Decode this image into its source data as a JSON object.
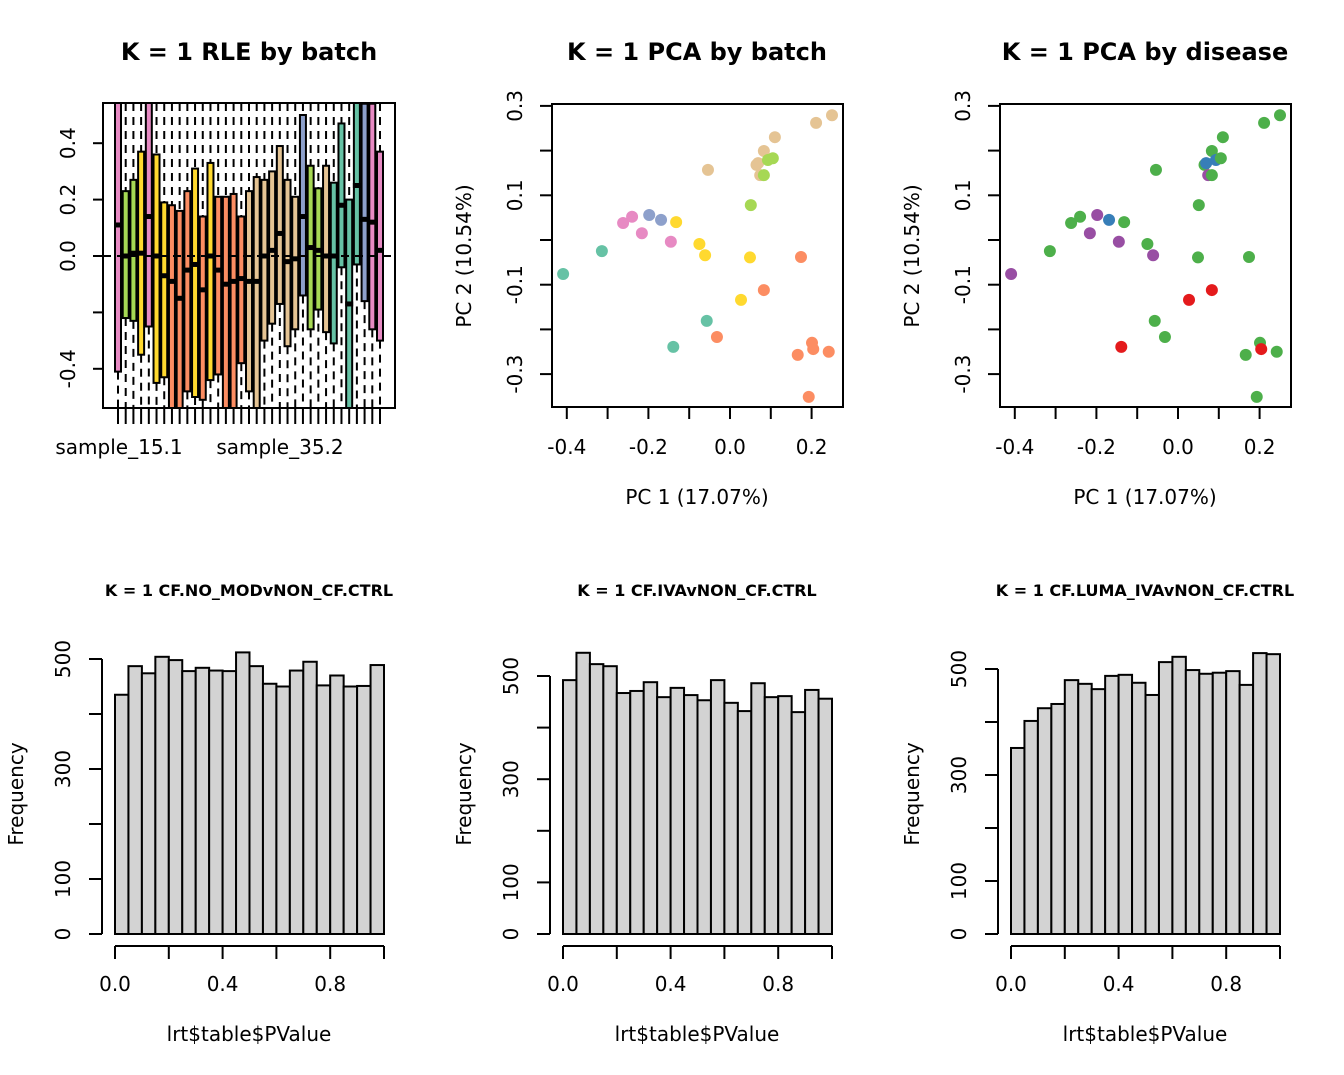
{
  "chart_data": [
    {
      "type": "boxplot",
      "title": "K = 1 RLE by batch",
      "xlabel": "",
      "ylabel": "",
      "ylim": [
        -0.54,
        0.54
      ],
      "yticks": [
        -0.4,
        -0.2,
        0.0,
        0.2,
        0.4
      ],
      "ytick_labels": [
        "-0.4",
        "",
        "0.0",
        "0.2",
        "0.4"
      ],
      "xtick_labels": [
        {
          "index": 4,
          "label": "sample_15.1"
        },
        {
          "index": 17,
          "label": "sample_35.2"
        }
      ],
      "reference_line": 0.0,
      "batch_colors": {
        "pink": "#E78AC3",
        "green": "#A6D854",
        "yellow": "#FFD92F",
        "salmon": "#FC8D62",
        "tan": "#E5C494",
        "blue": "#8DA0CB",
        "teal": "#66C2A5"
      },
      "boxes": [
        {
          "batch": "pink",
          "low": -0.6,
          "q1": -0.41,
          "median": 0.11,
          "q3": 0.6,
          "high": 0.7
        },
        {
          "batch": "green",
          "low": -0.6,
          "q1": -0.22,
          "median": 0.0,
          "q3": 0.23,
          "high": 0.6
        },
        {
          "batch": "green",
          "low": -0.6,
          "q1": -0.23,
          "median": 0.01,
          "q3": 0.27,
          "high": 0.6
        },
        {
          "batch": "yellow",
          "low": -0.6,
          "q1": -0.35,
          "median": 0.01,
          "q3": 0.37,
          "high": 0.6
        },
        {
          "batch": "pink",
          "low": -0.6,
          "q1": -0.25,
          "median": 0.14,
          "q3": 0.6,
          "high": 0.7
        },
        {
          "batch": "yellow",
          "low": -0.6,
          "q1": -0.45,
          "median": 0.0,
          "q3": 0.36,
          "high": 0.6
        },
        {
          "batch": "yellow",
          "low": -0.6,
          "q1": -0.43,
          "median": -0.07,
          "q3": 0.19,
          "high": 0.6
        },
        {
          "batch": "salmon",
          "low": -0.7,
          "q1": -0.6,
          "median": -0.09,
          "q3": 0.18,
          "high": 0.6
        },
        {
          "batch": "salmon",
          "low": -0.7,
          "q1": -0.6,
          "median": -0.15,
          "q3": 0.16,
          "high": 0.6
        },
        {
          "batch": "salmon",
          "low": -0.6,
          "q1": -0.48,
          "median": -0.05,
          "q3": 0.23,
          "high": 0.6
        },
        {
          "batch": "yellow",
          "low": -0.6,
          "q1": -0.5,
          "median": -0.03,
          "q3": 0.31,
          "high": 0.6
        },
        {
          "batch": "salmon",
          "low": -0.6,
          "q1": -0.51,
          "median": -0.12,
          "q3": 0.14,
          "high": 0.6
        },
        {
          "batch": "yellow",
          "low": -0.6,
          "q1": -0.44,
          "median": 0.0,
          "q3": 0.33,
          "high": 0.6
        },
        {
          "batch": "salmon",
          "low": -0.6,
          "q1": -0.42,
          "median": -0.05,
          "q3": 0.21,
          "high": 0.6
        },
        {
          "batch": "salmon",
          "low": -0.7,
          "q1": -0.6,
          "median": -0.1,
          "q3": 0.21,
          "high": 0.6
        },
        {
          "batch": "salmon",
          "low": -0.7,
          "q1": -0.6,
          "median": -0.09,
          "q3": 0.22,
          "high": 0.6
        },
        {
          "batch": "salmon",
          "low": -0.6,
          "q1": -0.38,
          "median": -0.08,
          "q3": 0.14,
          "high": 0.6
        },
        {
          "batch": "tan",
          "low": -0.6,
          "q1": -0.48,
          "median": -0.09,
          "q3": 0.23,
          "high": 0.6
        },
        {
          "batch": "tan",
          "low": -0.7,
          "q1": -0.6,
          "median": -0.09,
          "q3": 0.28,
          "high": 0.6
        },
        {
          "batch": "tan",
          "low": -0.6,
          "q1": -0.3,
          "median": 0.0,
          "q3": 0.27,
          "high": 0.6
        },
        {
          "batch": "tan",
          "low": -0.6,
          "q1": -0.24,
          "median": 0.02,
          "q3": 0.3,
          "high": 0.6
        },
        {
          "batch": "tan",
          "low": -0.6,
          "q1": -0.17,
          "median": 0.08,
          "q3": 0.39,
          "high": 0.6
        },
        {
          "batch": "tan",
          "low": -0.6,
          "q1": -0.32,
          "median": -0.02,
          "q3": 0.27,
          "high": 0.6
        },
        {
          "batch": "tan",
          "low": -0.6,
          "q1": -0.26,
          "median": -0.01,
          "q3": 0.21,
          "high": 0.6
        },
        {
          "batch": "blue",
          "low": -0.6,
          "q1": -0.14,
          "median": 0.14,
          "q3": 0.5,
          "high": 0.6
        },
        {
          "batch": "green",
          "low": -0.6,
          "q1": -0.26,
          "median": 0.03,
          "q3": 0.32,
          "high": 0.6
        },
        {
          "batch": "green",
          "low": -0.6,
          "q1": -0.19,
          "median": 0.02,
          "q3": 0.24,
          "high": 0.6
        },
        {
          "batch": "tan",
          "low": -0.6,
          "q1": -0.27,
          "median": 0.0,
          "q3": 0.32,
          "high": 0.6
        },
        {
          "batch": "teal",
          "low": -0.6,
          "q1": -0.31,
          "median": 0.0,
          "q3": 0.26,
          "high": 0.6
        },
        {
          "batch": "teal",
          "low": -0.6,
          "q1": -0.04,
          "median": 0.18,
          "q3": 0.47,
          "high": 0.6
        },
        {
          "batch": "teal",
          "low": -0.7,
          "q1": -0.6,
          "median": -0.17,
          "q3": 0.2,
          "high": 0.6
        },
        {
          "batch": "teal",
          "low": -0.6,
          "q1": -0.03,
          "median": 0.25,
          "q3": 0.6,
          "high": 0.7
        },
        {
          "batch": "blue",
          "low": -0.6,
          "q1": -0.16,
          "median": 0.13,
          "q3": 0.54,
          "high": 0.6
        },
        {
          "batch": "pink",
          "low": -0.6,
          "q1": -0.26,
          "median": 0.12,
          "q3": 0.54,
          "high": 0.6
        },
        {
          "batch": "pink",
          "low": -0.6,
          "q1": -0.3,
          "median": 0.02,
          "q3": 0.37,
          "high": 0.6
        }
      ]
    },
    {
      "type": "scatter",
      "title": "K = 1 PCA by batch",
      "xlabel": "PC 1 (17.07%)",
      "ylabel": "PC 2 (10.54%)",
      "xlim": [
        -0.445,
        0.27
      ],
      "ylim": [
        -0.375,
        0.305
      ],
      "xticks": [
        -0.4,
        -0.3,
        -0.2,
        -0.1,
        0.0,
        0.1,
        0.2
      ],
      "xtick_labels": [
        "-0.4",
        "",
        "-0.2",
        "",
        "0.0",
        "",
        "0.2"
      ],
      "yticks": [
        -0.3,
        -0.2,
        -0.1,
        0.0,
        0.1,
        0.2,
        0.3
      ],
      "ytick_labels": [
        "-0.3",
        "",
        "-0.1",
        "",
        "0.1",
        "",
        "0.3"
      ],
      "color_key": "batch"
    },
    {
      "type": "scatter",
      "title": "K = 1 PCA by disease",
      "xlabel": "PC 1 (17.07%)",
      "ylabel": "PC 2 (10.54%)",
      "xlim": [
        -0.445,
        0.27
      ],
      "ylim": [
        -0.375,
        0.305
      ],
      "xticks": [
        -0.4,
        -0.3,
        -0.2,
        -0.1,
        0.0,
        0.1,
        0.2
      ],
      "xtick_labels": [
        "-0.4",
        "",
        "-0.2",
        "",
        "0.0",
        "",
        "0.2"
      ],
      "yticks": [
        -0.3,
        -0.2,
        -0.1,
        0.0,
        0.1,
        0.2,
        0.3
      ],
      "ytick_labels": [
        "-0.3",
        "",
        "-0.1",
        "",
        "0.1",
        "",
        "0.3"
      ],
      "color_key": "disease",
      "disease_colors": {
        "green": "#4DAF4A",
        "purple": "#984EA3",
        "blue": "#377EB8",
        "red": "#E41A1C"
      }
    },
    {
      "type": "bar",
      "title": "K = 1 CF.NO_MODvNON_CF.CTRL",
      "xlabel": "lrt$table$PValue",
      "ylabel": "Frequency",
      "xlim": [
        0,
        1
      ],
      "ylim": [
        0,
        500
      ],
      "xticks": [
        0.0,
        0.2,
        0.4,
        0.6,
        0.8,
        1.0
      ],
      "xtick_labels": [
        "0.0",
        "",
        "0.4",
        "",
        "0.8",
        ""
      ],
      "yticks": [
        0,
        100,
        200,
        300,
        400,
        500
      ],
      "ytick_labels": [
        "0",
        "100",
        "",
        "300",
        "",
        "500"
      ],
      "bin_width": 0.05,
      "values": [
        435,
        487,
        474,
        504,
        498,
        478,
        484,
        479,
        478,
        512,
        487,
        455,
        450,
        479,
        495,
        452,
        470,
        450,
        451,
        489
      ]
    },
    {
      "type": "bar",
      "title": "K = 1 CF.IVAvNON_CF.CTRL",
      "xlabel": "lrt$table$PValue",
      "ylabel": "Frequency",
      "xlim": [
        0,
        1
      ],
      "ylim": [
        0,
        500
      ],
      "xticks": [
        0.0,
        0.2,
        0.4,
        0.6,
        0.8,
        1.0
      ],
      "xtick_labels": [
        "0.0",
        "",
        "0.4",
        "",
        "0.8",
        ""
      ],
      "yticks": [
        0,
        100,
        200,
        300,
        400,
        500
      ],
      "ytick_labels": [
        "0",
        "100",
        "",
        "300",
        "",
        "500"
      ],
      "bin_width": 0.05,
      "values": [
        492,
        545,
        523,
        519,
        467,
        471,
        488,
        459,
        477,
        463,
        453,
        492,
        448,
        432,
        486,
        459,
        461,
        430,
        473,
        456
      ]
    },
    {
      "type": "bar",
      "title": "K = 1 CF.LUMA_IVAvNON_CF.CTRL",
      "xlabel": "lrt$table$PValue",
      "ylabel": "Frequency",
      "xlim": [
        0,
        1
      ],
      "ylim": [
        0,
        500
      ],
      "xticks": [
        0.0,
        0.2,
        0.4,
        0.6,
        0.8,
        1.0
      ],
      "xtick_labels": [
        "0.0",
        "",
        "0.4",
        "",
        "0.8",
        ""
      ],
      "yticks": [
        0,
        100,
        200,
        300,
        400,
        500
      ],
      "ytick_labels": [
        "0",
        "100",
        "",
        "300",
        "",
        "500"
      ],
      "bin_width": 0.05,
      "values": [
        351,
        402,
        426,
        434,
        479,
        472,
        462,
        487,
        489,
        474,
        451,
        513,
        523,
        498,
        491,
        493,
        496,
        470,
        530,
        528
      ]
    }
  ],
  "pca_points": [
    {
      "pc1": -0.409,
      "pc2": -0.076,
      "batch": "teal",
      "disease": "purple"
    },
    {
      "pc1": -0.314,
      "pc2": -0.025,
      "batch": "teal",
      "disease": "green"
    },
    {
      "pc1": -0.262,
      "pc2": 0.038,
      "batch": "pink",
      "disease": "green"
    },
    {
      "pc1": -0.24,
      "pc2": 0.052,
      "batch": "pink",
      "disease": "green"
    },
    {
      "pc1": -0.198,
      "pc2": 0.056,
      "batch": "blue",
      "disease": "purple"
    },
    {
      "pc1": -0.169,
      "pc2": 0.045,
      "batch": "blue",
      "disease": "blue"
    },
    {
      "pc1": -0.216,
      "pc2": 0.015,
      "batch": "pink",
      "disease": "purple"
    },
    {
      "pc1": -0.145,
      "pc2": -0.004,
      "batch": "pink",
      "disease": "purple"
    },
    {
      "pc1": -0.132,
      "pc2": 0.04,
      "batch": "yellow",
      "disease": "green"
    },
    {
      "pc1": -0.075,
      "pc2": -0.009,
      "batch": "yellow",
      "disease": "green"
    },
    {
      "pc1": -0.061,
      "pc2": -0.034,
      "batch": "yellow",
      "disease": "purple"
    },
    {
      "pc1": 0.049,
      "pc2": -0.039,
      "batch": "yellow",
      "disease": "green"
    },
    {
      "pc1": 0.027,
      "pc2": -0.134,
      "batch": "yellow",
      "disease": "red"
    },
    {
      "pc1": -0.057,
      "pc2": -0.181,
      "batch": "teal",
      "disease": "green"
    },
    {
      "pc1": -0.139,
      "pc2": -0.239,
      "batch": "teal",
      "disease": "red"
    },
    {
      "pc1": -0.032,
      "pc2": -0.217,
      "batch": "salmon",
      "disease": "green"
    },
    {
      "pc1": 0.083,
      "pc2": -0.112,
      "batch": "salmon",
      "disease": "red"
    },
    {
      "pc1": 0.174,
      "pc2": -0.038,
      "batch": "salmon",
      "disease": "green"
    },
    {
      "pc1": 0.166,
      "pc2": -0.257,
      "batch": "salmon",
      "disease": "green"
    },
    {
      "pc1": 0.201,
      "pc2": -0.23,
      "batch": "salmon",
      "disease": "green"
    },
    {
      "pc1": 0.204,
      "pc2": -0.244,
      "batch": "salmon",
      "disease": "red"
    },
    {
      "pc1": 0.242,
      "pc2": -0.25,
      "batch": "salmon",
      "disease": "green"
    },
    {
      "pc1": 0.193,
      "pc2": -0.351,
      "batch": "salmon",
      "disease": "green"
    },
    {
      "pc1": -0.054,
      "pc2": 0.157,
      "batch": "tan",
      "disease": "green"
    },
    {
      "pc1": 0.065,
      "pc2": 0.168,
      "batch": "tan",
      "disease": "green"
    },
    {
      "pc1": 0.069,
      "pc2": 0.172,
      "batch": "tan",
      "disease": "blue"
    },
    {
      "pc1": 0.083,
      "pc2": 0.199,
      "batch": "tan",
      "disease": "green"
    },
    {
      "pc1": 0.074,
      "pc2": 0.145,
      "batch": "tan",
      "disease": "purple"
    },
    {
      "pc1": 0.11,
      "pc2": 0.23,
      "batch": "tan",
      "disease": "green"
    },
    {
      "pc1": 0.211,
      "pc2": 0.262,
      "batch": "tan",
      "disease": "green"
    },
    {
      "pc1": 0.25,
      "pc2": 0.279,
      "batch": "tan",
      "disease": "green"
    },
    {
      "pc1": 0.051,
      "pc2": 0.078,
      "batch": "green",
      "disease": "green"
    },
    {
      "pc1": 0.083,
      "pc2": 0.145,
      "batch": "green",
      "disease": "green"
    },
    {
      "pc1": 0.093,
      "pc2": 0.179,
      "batch": "green",
      "disease": "blue"
    },
    {
      "pc1": 0.105,
      "pc2": 0.183,
      "batch": "green",
      "disease": "green"
    }
  ]
}
